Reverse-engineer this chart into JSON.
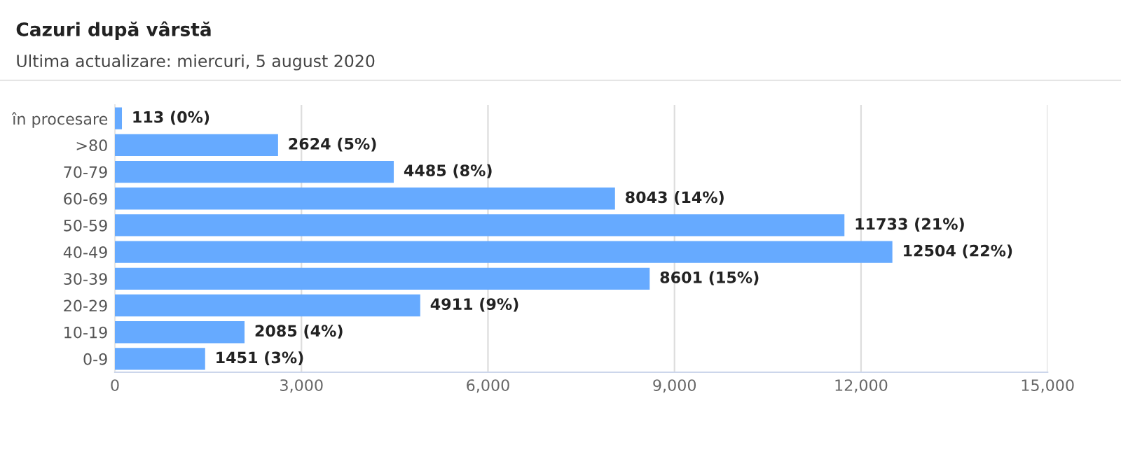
{
  "chart_data": {
    "type": "bar",
    "orientation": "horizontal",
    "title": "Cazuri după vârstă",
    "subtitle": "Ultima actualizare: miercuri, 5 august 2020",
    "categories": [
      "în procesare",
      ">80",
      "70-79",
      "60-69",
      "50-59",
      "40-49",
      "30-39",
      "20-29",
      "10-19",
      "0-9"
    ],
    "values": [
      113,
      2624,
      4485,
      8043,
      11733,
      12504,
      8601,
      4911,
      2085,
      1451
    ],
    "value_labels": [
      "113 (0%)",
      "2624 (5%)",
      "4485 (8%)",
      "8043 (14%)",
      "11733 (21%)",
      "12504 (22%)",
      "8601 (15%)",
      "4911 (9%)",
      "2085 (4%)",
      "1451 (3%)"
    ],
    "color": "#66aaff",
    "xlim": [
      0,
      15000
    ],
    "xticks": [
      0,
      {
        "value": 3000,
        "label": "3,000"
      },
      {
        "value": 6000,
        "label": "6,000"
      },
      {
        "value": 9000,
        "label": "9,000"
      },
      {
        "value": 12000,
        "label": "12,000"
      },
      {
        "value": 15000,
        "label": "15,000"
      }
    ],
    "grid": "x"
  }
}
